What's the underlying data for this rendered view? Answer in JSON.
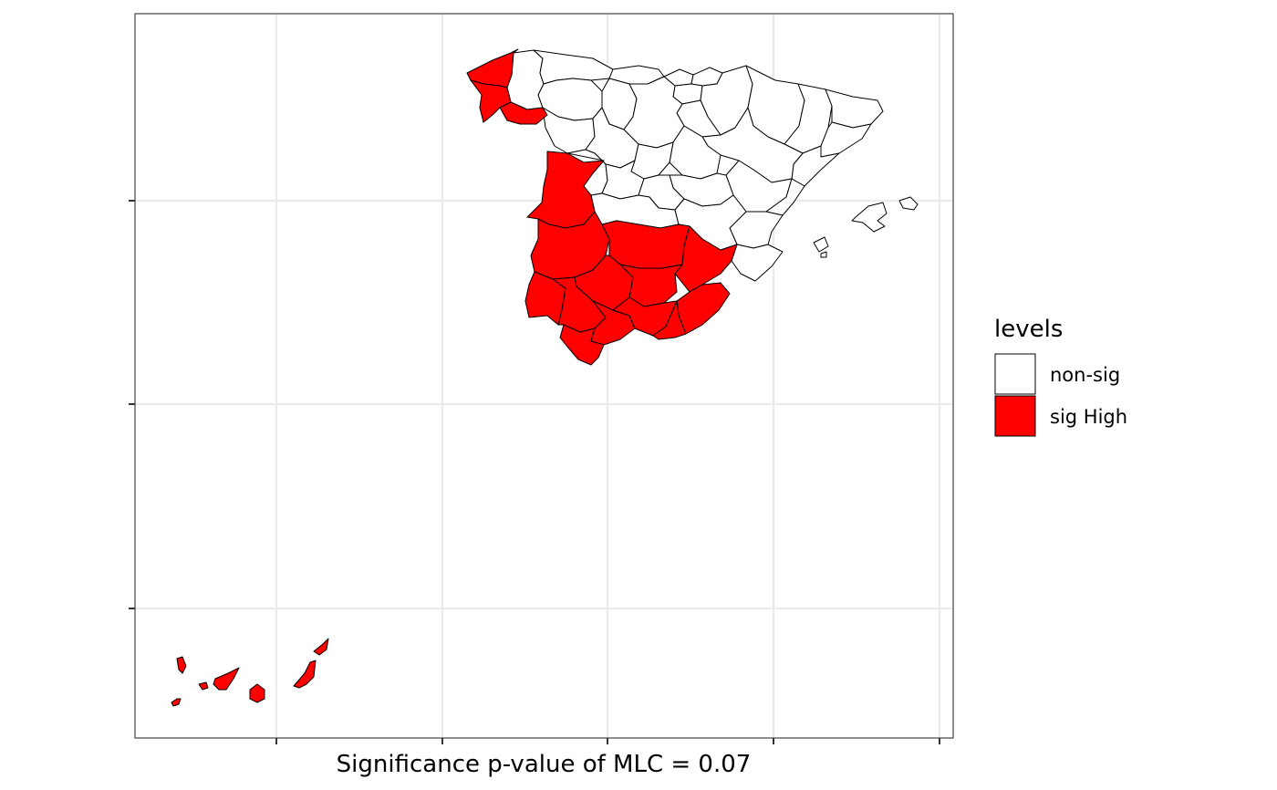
{
  "map": {
    "subject": "Spain provinces",
    "x_axis_title": "Significance p-value of MLC = 0.07",
    "grid": true,
    "axis_tick_labels_visible": false
  },
  "legend": {
    "title": "levels",
    "position": "right",
    "items": [
      {
        "label": "non-sig",
        "color": "#ffffff"
      },
      {
        "label": "sig High",
        "color": "#ff0000"
      }
    ]
  },
  "colors": {
    "non_sig": "#ffffff",
    "sig_high": "#ff0000",
    "border": "#000000",
    "grid": "#ebebeb",
    "panel_border": "#333333"
  },
  "regions": {
    "sig_high": [
      "A Coruña",
      "Pontevedra",
      "Ourense",
      "Cáceres",
      "Badajoz",
      "Ciudad Real",
      "Córdoba",
      "Jaén",
      "Albacete",
      "Murcia",
      "Huelva",
      "Sevilla",
      "Málaga",
      "Granada",
      "Almería",
      "Cádiz",
      "Santa Cruz de Tenerife",
      "Las Palmas"
    ],
    "non_sig": [
      "Lugo",
      "Asturias",
      "Cantabria",
      "Bizkaia",
      "Gipuzkoa",
      "Navarra",
      "La Rioja",
      "Araba",
      "Burgos",
      "León",
      "Palencia",
      "Zamora",
      "Valladolid",
      "Soria",
      "Huesca",
      "Lleida",
      "Girona",
      "Barcelona",
      "Tarragona",
      "Zaragoza",
      "Teruel",
      "Castelló",
      "Valencia",
      "Alacant",
      "Cuenca",
      "Guadalajara",
      "Madrid",
      "Toledo",
      "Ávila",
      "Segovia",
      "Salamanca",
      "Illes Balears"
    ]
  }
}
